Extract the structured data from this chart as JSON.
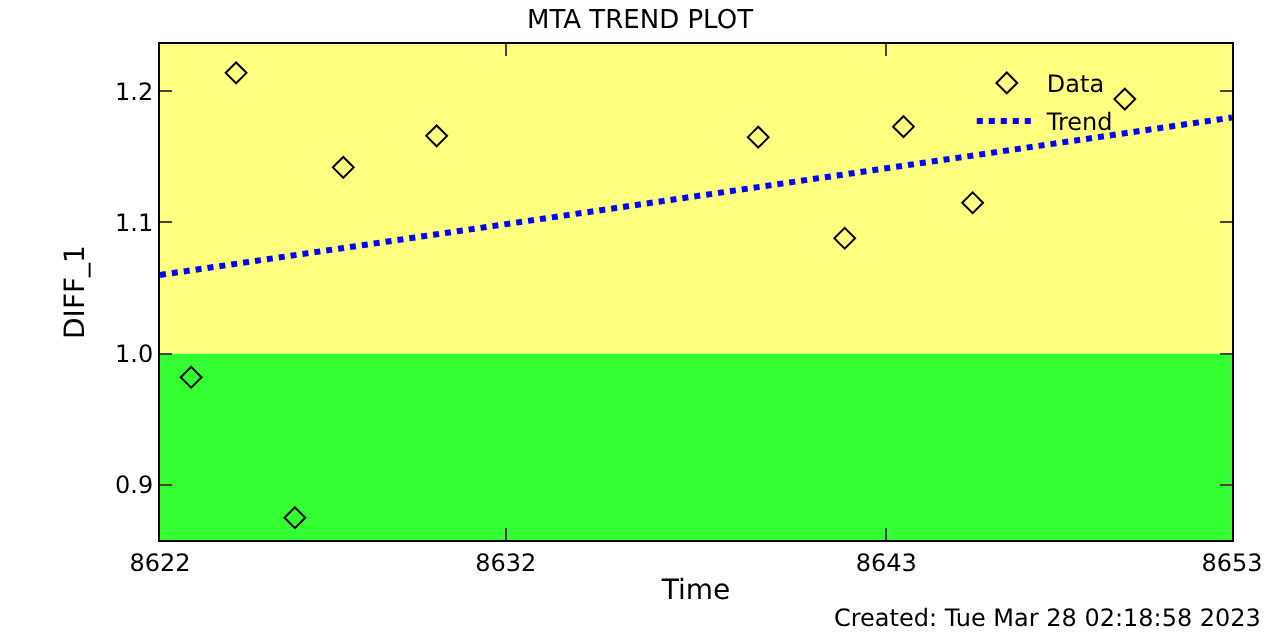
{
  "chart_data": {
    "type": "scatter",
    "title": "MTA TREND PLOT",
    "xlabel": "Time",
    "ylabel": "DIFF_1",
    "xlim": [
      8622,
      8653
    ],
    "xticks": [
      8622,
      8632,
      8643,
      8653
    ],
    "ylim": [
      0.858,
      1.236
    ],
    "yticks": [
      0.9,
      {
        "value": 1.0,
        "label": "1.0"
      },
      1.1,
      1.2
    ],
    "series": [
      {
        "name": "Data",
        "color": "#000000",
        "marker": "diamond",
        "x": [
          8622.9,
          8624.2,
          8625.9,
          8627.3,
          8630.0,
          8639.3,
          8641.8,
          8643.5,
          8645.5,
          8649.9
        ],
        "values": [
          0.982,
          1.214,
          0.875,
          1.142,
          1.166,
          1.165,
          1.088,
          1.173,
          1.115,
          1.194
        ]
      },
      {
        "name": "Trend",
        "type": "line",
        "color": "#0000ff",
        "line_style": "dotted",
        "x": [
          8622,
          8653
        ],
        "values": [
          1.06,
          1.18
        ]
      }
    ],
    "bands": [
      {
        "axis": "y",
        "from": 1.0,
        "to": 1.236,
        "color": "#ffff80"
      },
      {
        "axis": "y",
        "from": 0.858,
        "to": 1.0,
        "color": "#33ff33"
      }
    ],
    "legend": "top right",
    "grid": false,
    "annotations": [
      "Created: Tue Mar 28 02:18:58 2023"
    ]
  }
}
